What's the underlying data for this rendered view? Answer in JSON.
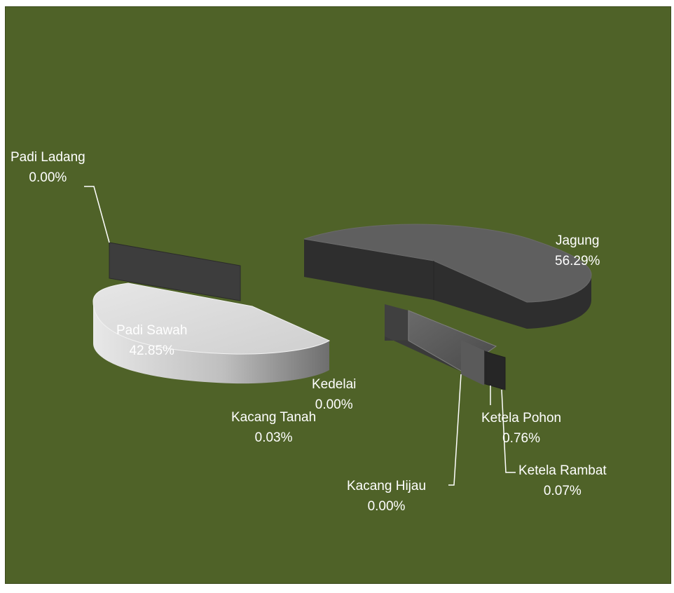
{
  "chart_data": {
    "type": "pie",
    "style": "3d-exploded",
    "title": "",
    "background_color": "#4f6228",
    "label_color": "#ffffff",
    "slices": [
      {
        "label": "Padi Sawah",
        "percent_label": "42.85%",
        "value": 42.85,
        "color": "#d9d9d9"
      },
      {
        "label": "Padi Ladang",
        "percent_label": "0.00%",
        "value": 0.0,
        "color": "#404040"
      },
      {
        "label": "Jagung",
        "percent_label": "56.29%",
        "value": 56.29,
        "color": "#595959"
      },
      {
        "label": "Ketela Pohon",
        "percent_label": "0.76%",
        "value": 0.76,
        "color": "#262626"
      },
      {
        "label": "Ketela Rambat",
        "percent_label": "0.07%",
        "value": 0.07,
        "color": "#303030"
      },
      {
        "label": "Kacang Tanah",
        "percent_label": "0.03%",
        "value": 0.03,
        "color": "#7f7f7f"
      },
      {
        "label": "Kedelai",
        "percent_label": "0.00%",
        "value": 0.0,
        "color": "#a6a6a6"
      },
      {
        "label": "Kacang Hijau",
        "percent_label": "0.00%",
        "value": 0.0,
        "color": "#595959"
      }
    ]
  }
}
